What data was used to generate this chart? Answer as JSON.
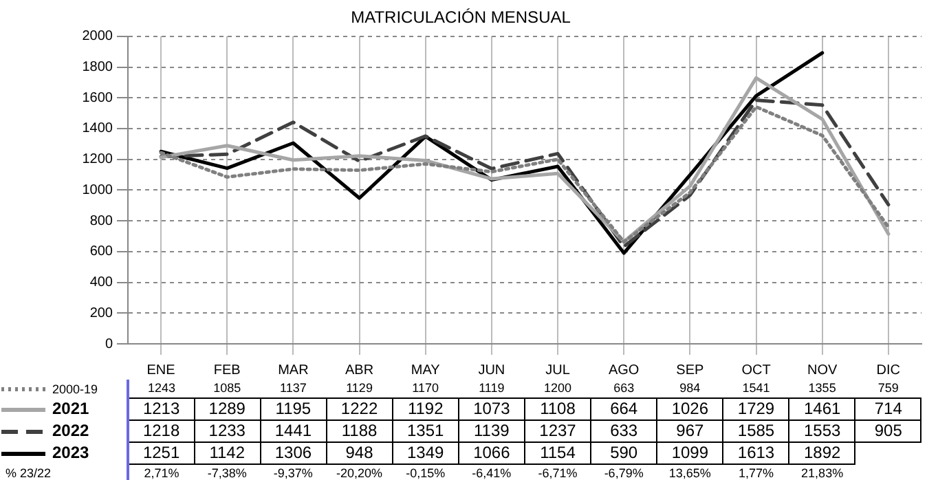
{
  "chart_data": {
    "type": "line",
    "title": "MATRICULACIÓN MENSUAL",
    "categories": [
      "ENE",
      "FEB",
      "MAR",
      "ABR",
      "MAY",
      "JUN",
      "JUL",
      "AGO",
      "SEP",
      "OCT",
      "NOV",
      "DIC"
    ],
    "series": [
      {
        "name": "2000-19",
        "color": "#808080",
        "line_style": "dotted",
        "values": [
          1243,
          1085,
          1137,
          1129,
          1170,
          1119,
          1200,
          663,
          984,
          1541,
          1355,
          759
        ]
      },
      {
        "name": "2021",
        "color": "#a6a6a6",
        "line_style": "solid",
        "values": [
          1213,
          1289,
          1195,
          1222,
          1192,
          1073,
          1108,
          664,
          1026,
          1729,
          1461,
          714
        ]
      },
      {
        "name": "2022",
        "color": "#404040",
        "line_style": "dashed",
        "values": [
          1218,
          1233,
          1441,
          1188,
          1351,
          1139,
          1237,
          633,
          967,
          1585,
          1553,
          905
        ]
      },
      {
        "name": "2023",
        "color": "#000000",
        "line_style": "solid",
        "values": [
          1251,
          1142,
          1306,
          948,
          1349,
          1066,
          1154,
          590,
          1099,
          1613,
          1892,
          null
        ]
      }
    ],
    "ylim": [
      0,
      2000
    ],
    "yticks": [
      0,
      200,
      400,
      600,
      800,
      1000,
      1200,
      1400,
      1600,
      1800,
      2000
    ],
    "grid": true,
    "marker": "none",
    "legend": "bottom left",
    "data_labels": true,
    "annotations": [
      "% 23/22",
      "2,71%",
      "-7,38%",
      "-9,37%",
      "-20,20%",
      "-0,15%",
      "-6,41%",
      "-6,71%",
      "-6,79%",
      "13,65%",
      "1,77%",
      "21,83%"
    ]
  }
}
